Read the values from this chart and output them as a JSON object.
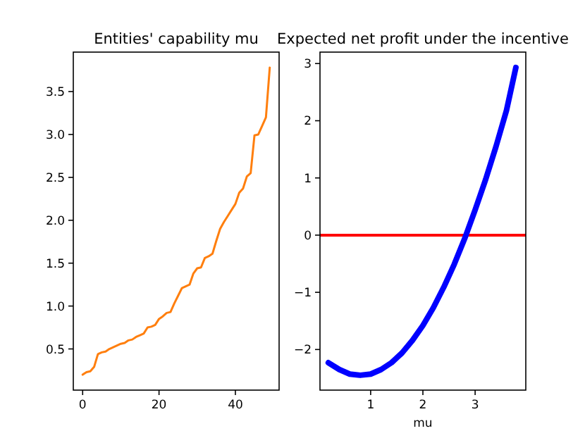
{
  "chart_data": [
    {
      "type": "line",
      "title": "Entities' capability mu",
      "x": [
        0,
        1,
        2,
        3,
        4,
        5,
        6,
        7,
        8,
        9,
        10,
        11,
        12,
        13,
        14,
        15,
        16,
        17,
        18,
        19,
        20,
        21,
        22,
        23,
        24,
        25,
        26,
        27,
        28,
        29,
        30,
        31,
        32,
        33,
        34,
        35,
        36,
        37,
        38,
        39,
        40,
        41,
        42,
        43,
        44,
        45,
        46,
        47,
        48,
        49
      ],
      "series": [
        {
          "color": "#ff7f0e",
          "values": [
            0.2,
            0.23,
            0.24,
            0.29,
            0.44,
            0.46,
            0.47,
            0.5,
            0.52,
            0.54,
            0.56,
            0.57,
            0.6,
            0.61,
            0.64,
            0.66,
            0.68,
            0.75,
            0.76,
            0.78,
            0.85,
            0.88,
            0.92,
            0.93,
            1.03,
            1.12,
            1.21,
            1.23,
            1.25,
            1.38,
            1.44,
            1.45,
            1.56,
            1.58,
            1.61,
            1.76,
            1.9,
            1.98,
            2.05,
            2.12,
            2.19,
            2.32,
            2.37,
            2.51,
            2.55,
            2.99,
            3.0,
            3.1,
            3.2,
            3.78
          ]
        }
      ],
      "xlim": [
        -2.45,
        51.45
      ],
      "ylim": [
        0.02,
        3.96
      ],
      "xticks": [
        0,
        20,
        40
      ],
      "yticks": [
        0.5,
        {
          "value": 1,
          "label": "1.0"
        },
        1.5,
        {
          "value": 2,
          "label": "2.0"
        },
        2.5,
        {
          "value": 3,
          "label": "3.0"
        },
        3.5
      ],
      "grid": false
    },
    {
      "type": "line",
      "title": "Expected net profit under the incentive",
      "xlabel": "mu",
      "x": [
        0.19,
        0.4,
        0.6,
        0.8,
        1.0,
        1.2,
        1.4,
        1.6,
        1.8,
        2.0,
        2.2,
        2.4,
        2.6,
        2.8,
        3.0,
        3.2,
        3.4,
        3.6,
        3.78
      ],
      "series": [
        {
          "color": "#0000ff",
          "values": [
            -2.23,
            -2.35,
            -2.43,
            -2.45,
            -2.43,
            -2.35,
            -2.23,
            -2.06,
            -1.84,
            -1.58,
            -1.27,
            -0.91,
            -0.51,
            -0.06,
            0.44,
            0.97,
            1.55,
            2.18,
            2.93
          ]
        }
      ],
      "ref_lines": [
        {
          "axis": "y",
          "value": 0,
          "color": "#ff0000"
        }
      ],
      "xlim": [
        0.03,
        3.97
      ],
      "ylim": [
        -2.71,
        3.2
      ],
      "xticks": [
        1,
        2,
        3
      ],
      "yticks": [
        -2,
        -1,
        0,
        1,
        2,
        3
      ],
      "grid": false
    }
  ]
}
